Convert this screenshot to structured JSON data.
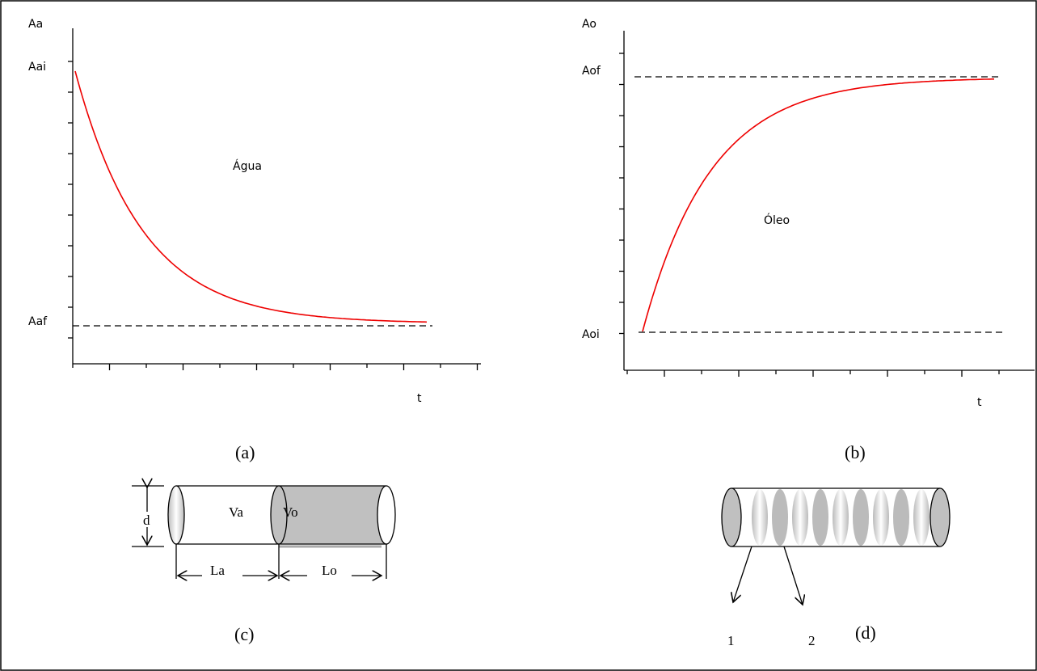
{
  "panel_a": {
    "y_axis_label": "Aa",
    "initial_label": "Aai",
    "final_label": "Aaf",
    "curve_label": "Água",
    "x_axis_label": "t",
    "caption": "(a)"
  },
  "panel_b": {
    "y_axis_label": "Ao",
    "final_label": "Aof",
    "initial_label": "Aoi",
    "curve_label": "Óleo",
    "x_axis_label": "t",
    "caption": "(b)"
  },
  "panel_c": {
    "diameter_label": "d",
    "water_volume_label": "Va",
    "oil_volume_label": "Vo",
    "water_length_label": "La",
    "oil_length_label": "Lo",
    "caption": "(c)"
  },
  "panel_d": {
    "arrow_labels": [
      "1",
      "2"
    ],
    "caption": "(d)"
  }
}
